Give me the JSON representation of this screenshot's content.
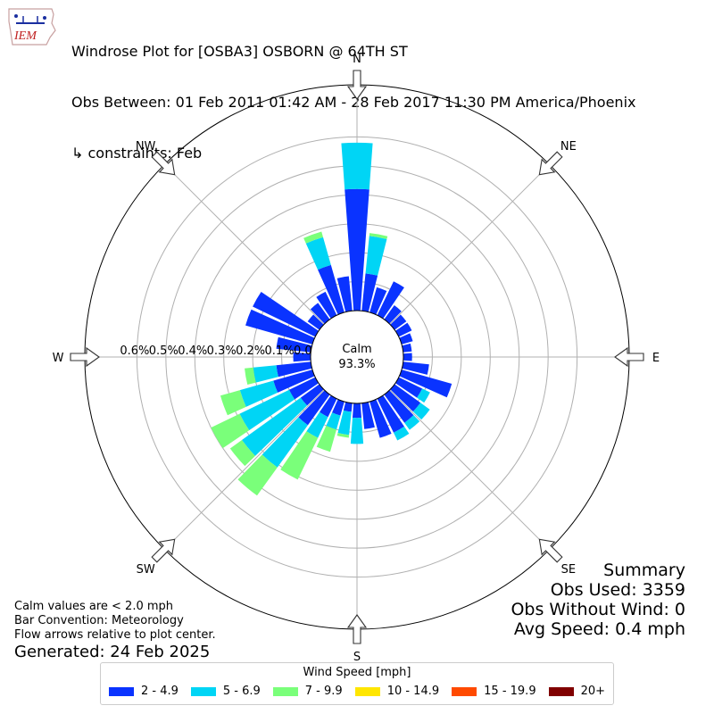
{
  "header": {
    "line1": "Windrose Plot for [OSBA3] OSBORN @ 64TH ST",
    "line2": "Obs Between: 01 Feb 2011 01:42 AM - 28 Feb 2017 11:30 PM America/Phoenix",
    "line3": "↳ constraints: Feb",
    "logo_text": "IEM"
  },
  "summary": {
    "heading": "Summary",
    "obs_used": "Obs Used: 3359",
    "obs_without_wind": "Obs Without Wind: 0",
    "avg_speed": "Avg Speed: 0.4 mph"
  },
  "notes": {
    "calm": "Calm values are < 2.0 mph",
    "convention": "Bar Convention: Meteorology",
    "arrows": "Flow arrows relative to plot center.",
    "generated": "Generated: 24 Feb 2025"
  },
  "legend": {
    "title": "Wind Speed [mph]",
    "items": [
      {
        "label": "2 - 4.9",
        "color": "#0a33ff"
      },
      {
        "label": "5 - 6.9",
        "color": "#00d5f5"
      },
      {
        "label": "7 - 9.9",
        "color": "#7aff7a"
      },
      {
        "label": "10 - 14.9",
        "color": "#ffe600"
      },
      {
        "label": "15 - 19.9",
        "color": "#ff4a00"
      },
      {
        "label": "20+",
        "color": "#800000"
      }
    ]
  },
  "chart_data": {
    "type": "windrose",
    "calm_label": "Calm",
    "calm_value": "93.3%",
    "radial_tick_labels": [
      "0.0%",
      "0.1%",
      "0.2%",
      "0.3%",
      "0.4%",
      "0.5%",
      "0.6%"
    ],
    "radial_ticks": [
      0.0,
      0.1,
      0.2,
      0.3,
      0.4,
      0.5,
      0.6
    ],
    "rmax": 0.78,
    "direction_labels": [
      "N",
      "NE",
      "E",
      "SE",
      "S",
      "SW",
      "W",
      "NW"
    ],
    "series_names": [
      "2 - 4.9",
      "5 - 6.9",
      "7 - 9.9"
    ],
    "series_colors": [
      "#0a33ff",
      "#00d5f5",
      "#7aff7a"
    ],
    "sectors": [
      {
        "dir": 0,
        "values": [
          0.42,
          0.16,
          0.0
        ]
      },
      {
        "dir": 10,
        "values": [
          0.13,
          0.13,
          0.01
        ]
      },
      {
        "dir": 20,
        "values": [
          0.09,
          0.0,
          0.0
        ]
      },
      {
        "dir": 30,
        "values": [
          0.13,
          0.0,
          0.0
        ]
      },
      {
        "dir": 40,
        "values": [
          0.06,
          0.0,
          0.0
        ]
      },
      {
        "dir": 50,
        "values": [
          0.05,
          0.0,
          0.0
        ]
      },
      {
        "dir": 60,
        "values": [
          0.05,
          0.0,
          0.0
        ]
      },
      {
        "dir": 70,
        "values": [
          0.04,
          0.0,
          0.0
        ]
      },
      {
        "dir": 80,
        "values": [
          0.03,
          0.0,
          0.0
        ]
      },
      {
        "dir": 90,
        "values": [
          0.03,
          0.0,
          0.0
        ]
      },
      {
        "dir": 100,
        "values": [
          0.09,
          0.0,
          0.0
        ]
      },
      {
        "dir": 110,
        "values": [
          0.18,
          0.0,
          0.0
        ]
      },
      {
        "dir": 120,
        "values": [
          0.09,
          0.03,
          0.0
        ]
      },
      {
        "dir": 130,
        "values": [
          0.11,
          0.04,
          0.0
        ]
      },
      {
        "dir": 140,
        "values": [
          0.12,
          0.03,
          0.0
        ]
      },
      {
        "dir": 150,
        "values": [
          0.13,
          0.03,
          0.0
        ]
      },
      {
        "dir": 160,
        "values": [
          0.13,
          0.0,
          0.0
        ]
      },
      {
        "dir": 170,
        "values": [
          0.09,
          0.0,
          0.0
        ]
      },
      {
        "dir": 180,
        "values": [
          0.05,
          0.09,
          0.0
        ]
      },
      {
        "dir": 190,
        "values": [
          0.03,
          0.08,
          0.01
        ]
      },
      {
        "dir": 200,
        "values": [
          0.05,
          0.05,
          0.08
        ]
      },
      {
        "dir": 210,
        "values": [
          0.07,
          0.08,
          0.16
        ]
      },
      {
        "dir": 220,
        "values": [
          0.13,
          0.18,
          0.12
        ]
      },
      {
        "dir": 230,
        "values": [
          0.08,
          0.25,
          0.05
        ]
      },
      {
        "dir": 240,
        "values": [
          0.1,
          0.19,
          0.11
        ]
      },
      {
        "dir": 250,
        "values": [
          0.14,
          0.12,
          0.07
        ]
      },
      {
        "dir": 260,
        "values": [
          0.12,
          0.08,
          0.03
        ]
      },
      {
        "dir": 270,
        "values": [
          0.06,
          0.0,
          0.0
        ]
      },
      {
        "dir": 280,
        "values": [
          0.12,
          0.0,
          0.0
        ]
      },
      {
        "dir": 290,
        "values": [
          0.24,
          0.0,
          0.0
        ]
      },
      {
        "dir": 300,
        "values": [
          0.24,
          0.0,
          0.0
        ]
      },
      {
        "dir": 310,
        "values": [
          0.05,
          0.0,
          0.0
        ]
      },
      {
        "dir": 320,
        "values": [
          0.07,
          0.0,
          0.0
        ]
      },
      {
        "dir": 330,
        "values": [
          0.09,
          0.0,
          0.0
        ]
      },
      {
        "dir": 340,
        "values": [
          0.17,
          0.1,
          0.02
        ]
      },
      {
        "dir": 350,
        "values": [
          0.12,
          0.0,
          0.0
        ]
      }
    ]
  }
}
